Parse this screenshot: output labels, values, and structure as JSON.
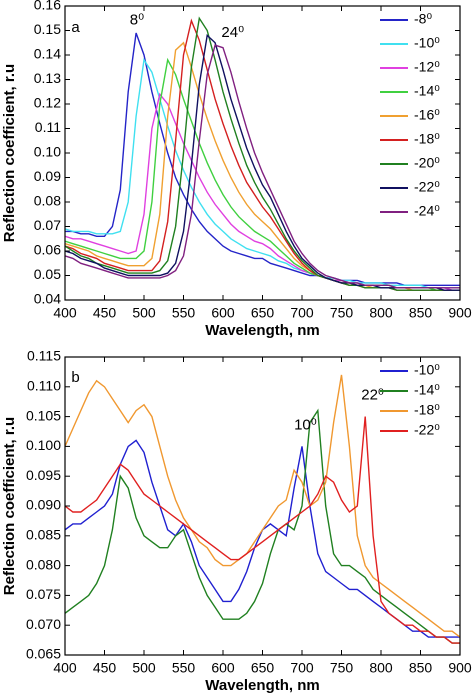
{
  "chart_data": [
    {
      "type": "line",
      "xlabel": "Wavelength, nm",
      "ylabel": "Reflection coefficient, r.u",
      "xlim": [
        400,
        900
      ],
      "xticks": [
        400,
        450,
        500,
        550,
        600,
        650,
        700,
        750,
        800,
        850,
        900
      ],
      "ylim": [
        0.04,
        0.16
      ],
      "yticks": [
        0.04,
        0.05,
        0.06,
        0.07,
        0.08,
        0.09,
        {
          "value": 0.1,
          "label": "0.10"
        },
        0.11,
        0.12,
        0.13,
        0.14,
        0.15,
        0.16
      ],
      "legend": "upper right",
      "annotations": [
        {
          "text": "a",
          "x": 408,
          "y": 0.151
        },
        {
          "text": "8⁰",
          "x": 482,
          "y": 0.154
        },
        {
          "text": "24⁰",
          "x": 598,
          "y": 0.149
        }
      ],
      "x": [
        400,
        410,
        420,
        430,
        440,
        450,
        460,
        470,
        480,
        490,
        500,
        510,
        520,
        530,
        540,
        550,
        560,
        570,
        580,
        590,
        600,
        610,
        620,
        630,
        640,
        650,
        660,
        670,
        680,
        690,
        700,
        710,
        720,
        730,
        740,
        750,
        760,
        770,
        780,
        790,
        800,
        810,
        820,
        830,
        840,
        850,
        860,
        870,
        880,
        890,
        900
      ],
      "series": [
        {
          "name": "-8⁰",
          "color": "#2424c8",
          "values": [
            0.068,
            0.068,
            0.067,
            0.067,
            0.066,
            0.066,
            0.07,
            0.085,
            0.125,
            0.149,
            0.14,
            0.125,
            0.112,
            0.1,
            0.09,
            0.083,
            0.077,
            0.072,
            0.068,
            0.065,
            0.062,
            0.06,
            0.059,
            0.058,
            0.057,
            0.057,
            0.055,
            0.054,
            0.053,
            0.052,
            0.051,
            0.05,
            0.05,
            0.049,
            0.049,
            0.048,
            0.048,
            0.048,
            0.047,
            0.047,
            0.047,
            0.047,
            0.047,
            0.046,
            0.046,
            0.046,
            0.046,
            0.046,
            0.046,
            0.046,
            0.046
          ]
        },
        {
          "name": "-10⁰",
          "color": "#40e0f0",
          "values": [
            0.069,
            0.068,
            0.068,
            0.068,
            0.067,
            0.067,
            0.067,
            0.068,
            0.08,
            0.115,
            0.138,
            0.133,
            0.122,
            0.111,
            0.101,
            0.093,
            0.086,
            0.08,
            0.075,
            0.071,
            0.068,
            0.065,
            0.063,
            0.061,
            0.06,
            0.059,
            0.058,
            0.056,
            0.055,
            0.053,
            0.052,
            0.051,
            0.05,
            0.049,
            0.049,
            0.048,
            0.048,
            0.047,
            0.047,
            0.047,
            0.047,
            0.046,
            0.046,
            0.046,
            0.046,
            0.046,
            0.045,
            0.045,
            0.045,
            0.045,
            0.045
          ]
        },
        {
          "name": "-12⁰",
          "color": "#e040e0",
          "values": [
            0.066,
            0.065,
            0.065,
            0.064,
            0.063,
            0.062,
            0.061,
            0.06,
            0.059,
            0.06,
            0.075,
            0.11,
            0.124,
            0.12,
            0.112,
            0.104,
            0.097,
            0.09,
            0.084,
            0.079,
            0.075,
            0.071,
            0.068,
            0.066,
            0.064,
            0.063,
            0.061,
            0.058,
            0.056,
            0.054,
            0.052,
            0.051,
            0.05,
            0.049,
            0.048,
            0.048,
            0.047,
            0.047,
            0.046,
            0.046,
            0.046,
            0.046,
            0.045,
            0.045,
            0.045,
            0.045,
            0.045,
            0.045,
            0.045,
            0.044,
            0.044
          ]
        },
        {
          "name": "-14⁰",
          "color": "#40d040",
          "values": [
            0.064,
            0.063,
            0.062,
            0.061,
            0.06,
            0.059,
            0.058,
            0.057,
            0.057,
            0.057,
            0.06,
            0.08,
            0.12,
            0.138,
            0.132,
            0.122,
            0.113,
            0.104,
            0.096,
            0.089,
            0.083,
            0.078,
            0.074,
            0.071,
            0.068,
            0.066,
            0.064,
            0.061,
            0.058,
            0.055,
            0.053,
            0.051,
            0.05,
            0.049,
            0.048,
            0.047,
            0.047,
            0.046,
            0.046,
            0.046,
            0.046,
            0.046,
            0.045,
            0.045,
            0.045,
            0.045,
            0.045,
            0.044,
            0.044,
            0.044,
            0.044
          ]
        },
        {
          "name": "-16⁰",
          "color": "#f0a030",
          "values": [
            0.063,
            0.062,
            0.061,
            0.06,
            0.058,
            0.057,
            0.056,
            0.055,
            0.054,
            0.054,
            0.054,
            0.057,
            0.075,
            0.115,
            0.142,
            0.145,
            0.135,
            0.124,
            0.114,
            0.105,
            0.097,
            0.09,
            0.084,
            0.079,
            0.075,
            0.072,
            0.069,
            0.065,
            0.061,
            0.057,
            0.054,
            0.052,
            0.05,
            0.049,
            0.048,
            0.047,
            0.047,
            0.046,
            0.046,
            0.045,
            0.045,
            0.045,
            0.045,
            0.045,
            0.044,
            0.044,
            0.044,
            0.044,
            0.044,
            0.044,
            0.044
          ]
        },
        {
          "name": "-18⁰",
          "color": "#d42020",
          "values": [
            0.062,
            0.061,
            0.059,
            0.058,
            0.057,
            0.055,
            0.054,
            0.053,
            0.052,
            0.052,
            0.052,
            0.052,
            0.056,
            0.072,
            0.105,
            0.14,
            0.154,
            0.146,
            0.134,
            0.122,
            0.112,
            0.103,
            0.095,
            0.088,
            0.083,
            0.078,
            0.074,
            0.069,
            0.064,
            0.059,
            0.055,
            0.052,
            0.05,
            0.049,
            0.048,
            0.047,
            0.046,
            0.046,
            0.045,
            0.045,
            0.045,
            0.045,
            0.044,
            0.044,
            0.044,
            0.044,
            0.044,
            0.044,
            0.044,
            0.044,
            0.044
          ]
        },
        {
          "name": "-20⁰",
          "color": "#208020",
          "values": [
            0.062,
            0.06,
            0.058,
            0.057,
            0.055,
            0.054,
            0.053,
            0.052,
            0.051,
            0.051,
            0.051,
            0.051,
            0.052,
            0.056,
            0.07,
            0.1,
            0.135,
            0.155,
            0.15,
            0.138,
            0.125,
            0.114,
            0.104,
            0.095,
            0.088,
            0.082,
            0.077,
            0.071,
            0.065,
            0.06,
            0.056,
            0.053,
            0.05,
            0.049,
            0.048,
            0.047,
            0.046,
            0.046,
            0.045,
            0.045,
            0.045,
            0.045,
            0.044,
            0.044,
            0.044,
            0.044,
            0.044,
            0.044,
            0.044,
            0.044,
            0.044
          ]
        },
        {
          "name": "-22⁰",
          "color": "#101060",
          "values": [
            0.06,
            0.059,
            0.057,
            0.056,
            0.055,
            0.053,
            0.052,
            0.051,
            0.05,
            0.05,
            0.05,
            0.05,
            0.05,
            0.051,
            0.055,
            0.068,
            0.095,
            0.128,
            0.148,
            0.145,
            0.134,
            0.122,
            0.112,
            0.102,
            0.094,
            0.087,
            0.082,
            0.075,
            0.068,
            0.062,
            0.057,
            0.054,
            0.051,
            0.049,
            0.048,
            0.047,
            0.047,
            0.046,
            0.046,
            0.046,
            0.045,
            0.045,
            0.045,
            0.045,
            0.045,
            0.045,
            0.045,
            0.045,
            0.044,
            0.044,
            0.044
          ]
        },
        {
          "name": "-24⁰",
          "color": "#802080",
          "values": [
            0.058,
            0.057,
            0.055,
            0.054,
            0.053,
            0.052,
            0.051,
            0.05,
            0.049,
            0.049,
            0.049,
            0.049,
            0.049,
            0.05,
            0.052,
            0.058,
            0.075,
            0.105,
            0.132,
            0.144,
            0.143,
            0.133,
            0.121,
            0.11,
            0.1,
            0.092,
            0.085,
            0.078,
            0.071,
            0.064,
            0.059,
            0.055,
            0.052,
            0.05,
            0.049,
            0.048,
            0.047,
            0.047,
            0.046,
            0.046,
            0.046,
            0.046,
            0.045,
            0.045,
            0.045,
            0.045,
            0.045,
            0.045,
            0.045,
            0.045,
            0.045
          ]
        }
      ]
    },
    {
      "type": "line",
      "xlabel": "Wavelength, nm",
      "ylabel": "Reflection coefficient, r.u",
      "xlim": [
        400,
        900
      ],
      "xticks": [
        400,
        450,
        500,
        550,
        600,
        650,
        700,
        750,
        800,
        850,
        900
      ],
      "ylim": [
        0.065,
        0.115
      ],
      "yticks": [
        0.065,
        {
          "value": 0.07,
          "label": "0.070"
        },
        0.075,
        {
          "value": 0.08,
          "label": "0.080"
        },
        0.085,
        {
          "value": 0.09,
          "label": "0.090"
        },
        0.095,
        {
          "value": 0.1,
          "label": "0.100"
        },
        0.105,
        {
          "value": 0.11,
          "label": "0.110"
        },
        0.115
      ],
      "legend": "upper right",
      "annotations": [
        {
          "text": "b",
          "x": 408,
          "y": 0.1115
        },
        {
          "text": "10⁰",
          "x": 690,
          "y": 0.1035
        },
        {
          "text": "22⁰",
          "x": 775,
          "y": 0.1085
        }
      ],
      "x": [
        400,
        410,
        420,
        430,
        440,
        450,
        460,
        470,
        480,
        490,
        500,
        510,
        520,
        530,
        540,
        550,
        560,
        570,
        580,
        590,
        600,
        610,
        620,
        630,
        640,
        650,
        660,
        670,
        680,
        690,
        700,
        710,
        720,
        730,
        740,
        750,
        760,
        770,
        780,
        790,
        800,
        810,
        820,
        830,
        840,
        850,
        860,
        870,
        880,
        890,
        900
      ],
      "series": [
        {
          "name": "-10⁰",
          "color": "#2020d0",
          "values": [
            0.086,
            0.087,
            0.087,
            0.088,
            0.089,
            0.09,
            0.092,
            0.097,
            0.1,
            0.101,
            0.099,
            0.094,
            0.09,
            0.086,
            0.085,
            0.087,
            0.084,
            0.08,
            0.078,
            0.076,
            0.074,
            0.074,
            0.076,
            0.079,
            0.083,
            0.086,
            0.087,
            0.086,
            0.085,
            0.093,
            0.1,
            0.09,
            0.082,
            0.079,
            0.078,
            0.077,
            0.076,
            0.076,
            0.075,
            0.074,
            0.073,
            0.072,
            0.071,
            0.07,
            0.069,
            0.069,
            0.068,
            0.068,
            0.068,
            0.068,
            0.068
          ]
        },
        {
          "name": "-14⁰",
          "color": "#208020",
          "values": [
            0.072,
            0.073,
            0.074,
            0.075,
            0.077,
            0.08,
            0.086,
            0.095,
            0.093,
            0.088,
            0.085,
            0.084,
            0.083,
            0.083,
            0.085,
            0.086,
            0.082,
            0.078,
            0.075,
            0.073,
            0.071,
            0.071,
            0.071,
            0.072,
            0.074,
            0.077,
            0.082,
            0.086,
            0.087,
            0.086,
            0.09,
            0.104,
            0.106,
            0.09,
            0.082,
            0.08,
            0.08,
            0.079,
            0.078,
            0.076,
            0.075,
            0.074,
            0.073,
            0.072,
            0.071,
            0.07,
            0.069,
            0.068,
            0.068,
            0.067,
            0.067
          ]
        },
        {
          "name": "-18⁰",
          "color": "#f09830",
          "values": [
            0.1,
            0.103,
            0.106,
            0.109,
            0.111,
            0.11,
            0.108,
            0.106,
            0.104,
            0.106,
            0.107,
            0.105,
            0.1,
            0.095,
            0.091,
            0.088,
            0.086,
            0.084,
            0.083,
            0.081,
            0.08,
            0.08,
            0.081,
            0.082,
            0.084,
            0.086,
            0.088,
            0.09,
            0.091,
            0.096,
            0.094,
            0.09,
            0.091,
            0.094,
            0.104,
            0.112,
            0.1,
            0.085,
            0.08,
            0.078,
            0.077,
            0.076,
            0.075,
            0.074,
            0.073,
            0.072,
            0.071,
            0.07,
            0.069,
            0.069,
            0.068
          ]
        },
        {
          "name": "-22⁰",
          "color": "#e02020",
          "values": [
            0.09,
            0.089,
            0.089,
            0.09,
            0.091,
            0.093,
            0.095,
            0.097,
            0.096,
            0.094,
            0.092,
            0.091,
            0.09,
            0.089,
            0.088,
            0.087,
            0.086,
            0.085,
            0.084,
            0.083,
            0.082,
            0.081,
            0.081,
            0.082,
            0.083,
            0.084,
            0.085,
            0.086,
            0.087,
            0.088,
            0.089,
            0.09,
            0.092,
            0.095,
            0.094,
            0.091,
            0.089,
            0.09,
            0.105,
            0.085,
            0.074,
            0.072,
            0.071,
            0.07,
            0.07,
            0.069,
            0.069,
            0.068,
            0.068,
            0.067,
            0.067
          ]
        }
      ]
    }
  ]
}
